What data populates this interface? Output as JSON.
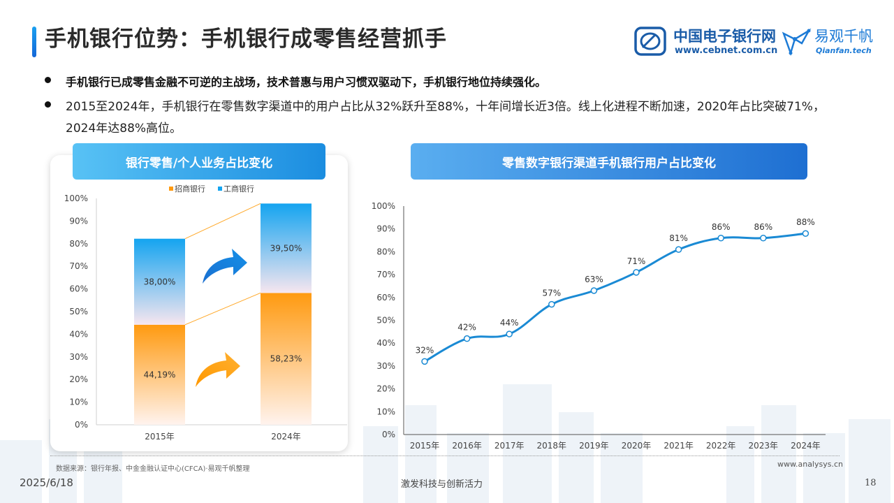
{
  "header": {
    "title": "手机银行位势：手机银行成零售经营抓手",
    "logo_cebnet_cn": "中国电子银行网",
    "logo_cebnet_en": "www.cebnet.com.cn",
    "logo_qianfan_cn": "易观千帆",
    "logo_qianfan_en": "Qianfan.tech"
  },
  "bullets": [
    "手机银行已成零售金融不可逆的主战场，技术普惠与用户习惯双驱动下，手机银行地位持续强化。",
    "2015至2024年，手机银行在零售数字渠道中的用户占比从32%跃升至88%，十年间增长近3倍。线上化进程不断加速，2020年占比突破71%，2024年达88%高位。"
  ],
  "footer": {
    "source": "数据来源：银行年报、中金金融认证中心(CFCA)·易观千帆整理",
    "url": "www.analysys.cn",
    "date": "2025/6/18",
    "slogan": "激发科技与创新活力",
    "page": "18"
  },
  "colors": {
    "orange": "#ff9a10",
    "blue": "#14a4f0",
    "line": "#1a8ad4"
  },
  "chart_data": [
    {
      "type": "bar",
      "title": "银行零售/个人业务占比变化",
      "stacked": true,
      "categories": [
        "2015年",
        "2024年"
      ],
      "series": [
        {
          "name": "招商银行",
          "values": [
            44.19,
            58.23
          ],
          "labels": [
            "44,19%",
            "58,23%"
          ]
        },
        {
          "name": "工商银行",
          "values": [
            38.0,
            39.5
          ],
          "labels": [
            "38,00%",
            "39,50%"
          ]
        }
      ],
      "ylim": [
        0,
        100
      ],
      "yticks": [
        "0%",
        "10%",
        "20%",
        "30%",
        "40%",
        "50%",
        "60%",
        "70%",
        "80%",
        "90%",
        "100%"
      ],
      "legend": "top",
      "grid": false
    },
    {
      "type": "line",
      "title": "零售数字银行渠道手机银行用户占比变化",
      "categories": [
        "2015年",
        "2016年",
        "2017年",
        "2018年",
        "2019年",
        "2020年",
        "2021年",
        "2022年",
        "2023年",
        "2024年"
      ],
      "series": [
        {
          "values": [
            32,
            42,
            44,
            57,
            63,
            71,
            81,
            86,
            86,
            88
          ],
          "labels": [
            "32%",
            "42%",
            "44%",
            "57%",
            "63%",
            "71%",
            "81%",
            "86%",
            "86%",
            "88%"
          ]
        }
      ],
      "ylim": [
        0,
        100
      ],
      "yticks": [
        "0%",
        "10%",
        "20%",
        "30%",
        "40%",
        "50%",
        "60%",
        "70%",
        "80%",
        "90%",
        "100%"
      ],
      "grid": false
    }
  ]
}
